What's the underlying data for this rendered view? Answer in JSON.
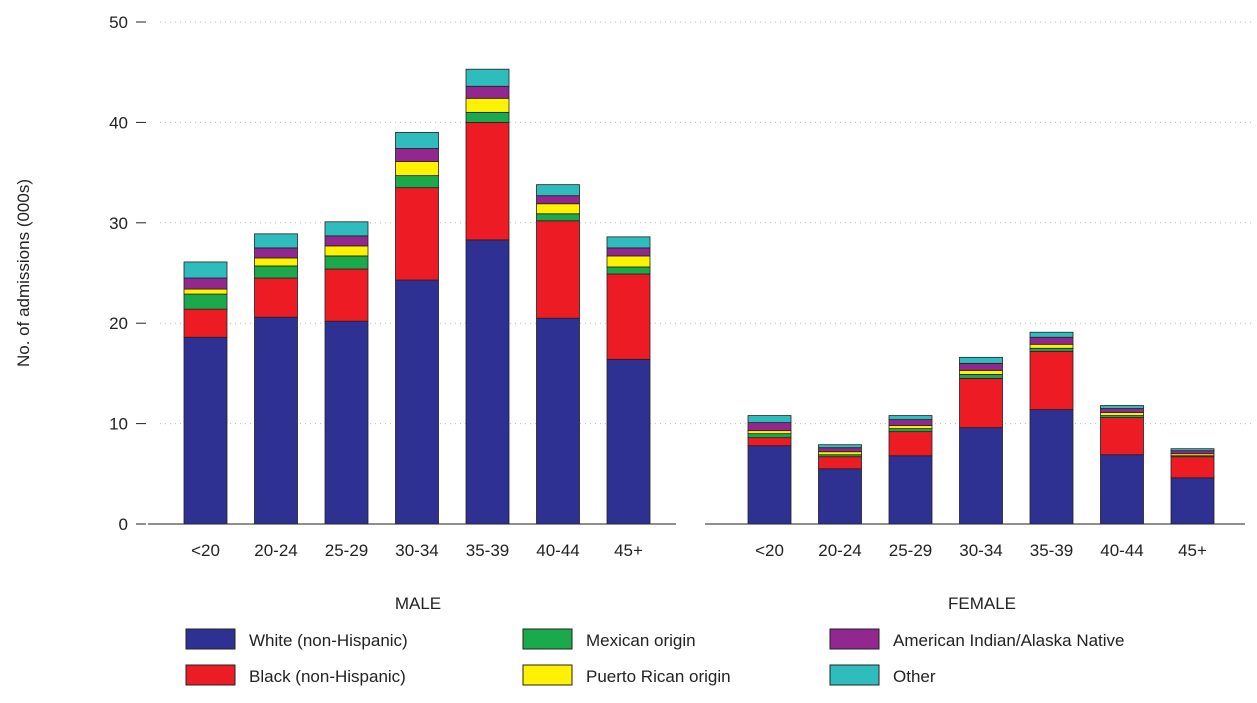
{
  "chart_data": {
    "type": "bar",
    "stacked": true,
    "ylabel": "No. of admissions (000s)",
    "ylim": [
      0,
      50
    ],
    "yticks": [
      0,
      10,
      20,
      30,
      40,
      50
    ],
    "grid": true,
    "legend_position": "bottom",
    "categories": [
      "<20",
      "20-24",
      "25-29",
      "30-34",
      "35-39",
      "40-44",
      "45+"
    ],
    "groups": [
      "MALE",
      "FEMALE"
    ],
    "series": [
      {
        "name": "White (non-Hispanic)",
        "color": "#2e3192",
        "values": {
          "MALE": [
            18.6,
            20.6,
            20.2,
            24.3,
            28.3,
            20.5,
            16.4
          ],
          "FEMALE": [
            7.8,
            5.5,
            6.8,
            9.6,
            11.4,
            6.9,
            4.6
          ]
        }
      },
      {
        "name": "Black (non-Hispanic)",
        "color": "#ed1c24",
        "values": {
          "MALE": [
            2.8,
            3.9,
            5.2,
            9.2,
            11.7,
            9.7,
            8.5
          ],
          "FEMALE": [
            0.8,
            1.2,
            2.4,
            4.9,
            5.8,
            3.7,
            2.1
          ]
        }
      },
      {
        "name": "Mexican origin",
        "color": "#1aaa4b",
        "values": {
          "MALE": [
            1.5,
            1.2,
            1.3,
            1.2,
            1.0,
            0.7,
            0.7
          ],
          "FEMALE": [
            0.4,
            0.2,
            0.3,
            0.4,
            0.3,
            0.2,
            0.1
          ]
        }
      },
      {
        "name": "Puerto Rican origin",
        "color": "#fff200",
        "values": {
          "MALE": [
            0.5,
            0.8,
            1.0,
            1.4,
            1.4,
            1.0,
            1.1
          ],
          "FEMALE": [
            0.3,
            0.3,
            0.3,
            0.4,
            0.4,
            0.3,
            0.2
          ]
        }
      },
      {
        "name": "American Indian/Alaska Native",
        "color": "#92278f",
        "values": {
          "MALE": [
            1.1,
            1.0,
            1.0,
            1.3,
            1.2,
            0.8,
            0.8
          ],
          "FEMALE": [
            0.8,
            0.4,
            0.6,
            0.7,
            0.7,
            0.4,
            0.3
          ]
        }
      },
      {
        "name": "Other",
        "color": "#2fbcbc",
        "values": {
          "MALE": [
            1.6,
            1.4,
            1.4,
            1.6,
            1.7,
            1.1,
            1.1
          ],
          "FEMALE": [
            0.7,
            0.3,
            0.4,
            0.6,
            0.5,
            0.3,
            0.2
          ]
        }
      }
    ]
  }
}
